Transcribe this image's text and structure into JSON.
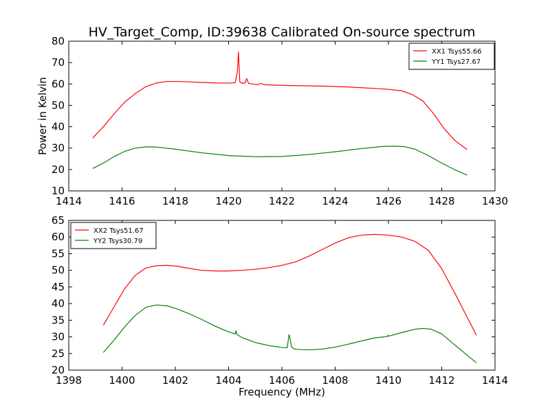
{
  "title": "HV_Target_Comp, ID:39638 Calibrated On-source spectrum",
  "chart_data": [
    {
      "type": "line",
      "ylabel": "Power in Kelvin",
      "xlabel": "",
      "xlim": [
        1414,
        1430
      ],
      "ylim": [
        10,
        80
      ],
      "xticks": [
        1414,
        1416,
        1418,
        1420,
        1422,
        1424,
        1426,
        1428,
        1430
      ],
      "yticks": [
        10,
        20,
        30,
        40,
        50,
        60,
        70,
        80
      ],
      "legend_position": "top-right",
      "grid": false,
      "series": [
        {
          "name": "XX1 Tsys55.66",
          "color": "#ff0000",
          "x": [
            1414.9,
            1415.3,
            1415.7,
            1416.1,
            1416.5,
            1416.9,
            1417.3,
            1417.7,
            1418.1,
            1418.5,
            1419.0,
            1419.5,
            1420.0,
            1420.25,
            1420.33,
            1420.37,
            1420.42,
            1420.5,
            1420.62,
            1420.68,
            1420.75,
            1420.9,
            1421.1,
            1421.2,
            1421.4,
            1421.8,
            1422.5,
            1423.5,
            1424.5,
            1425.5,
            1426.0,
            1426.5,
            1426.9,
            1427.3,
            1427.7,
            1428.1,
            1428.5,
            1428.95
          ],
          "y": [
            34.7,
            40,
            46,
            51.5,
            55.5,
            58.8,
            60.5,
            61.2,
            61.2,
            61.0,
            60.7,
            60.5,
            60.4,
            60.6,
            66,
            75,
            61,
            60.3,
            60.5,
            62.5,
            60.3,
            60.0,
            59.7,
            60.2,
            59.6,
            59.4,
            59.2,
            59.0,
            58.6,
            57.9,
            57.5,
            56.8,
            55,
            52,
            46,
            39,
            33.5,
            29.3
          ]
        },
        {
          "name": "YY1 Tsys27.67",
          "color": "#008000",
          "x": [
            1414.9,
            1415.3,
            1415.7,
            1416.1,
            1416.5,
            1416.9,
            1417.3,
            1418.0,
            1419.0,
            1420.0,
            1421.0,
            1422.0,
            1423.0,
            1424.0,
            1425.0,
            1425.8,
            1426.2,
            1426.6,
            1427.0,
            1427.5,
            1428.0,
            1428.5,
            1428.95
          ],
          "y": [
            20.5,
            23,
            26,
            28.5,
            30,
            30.6,
            30.5,
            29.5,
            27.8,
            26.5,
            26.0,
            26.1,
            27.0,
            28.3,
            29.8,
            30.8,
            30.9,
            30.7,
            29.5,
            26.5,
            23,
            19.8,
            17.4
          ]
        }
      ]
    },
    {
      "type": "line",
      "ylabel": "",
      "xlabel": "Frequency (MHz)",
      "xlim": [
        1398,
        1414
      ],
      "ylim": [
        20,
        65
      ],
      "xticks": [
        1398,
        1400,
        1402,
        1404,
        1406,
        1408,
        1410,
        1412,
        1414
      ],
      "yticks": [
        20,
        25,
        30,
        35,
        40,
        45,
        50,
        55,
        60,
        65
      ],
      "legend_position": "top-left",
      "grid": false,
      "series": [
        {
          "name": "XX2 Tsys51.67",
          "color": "#ff0000",
          "x": [
            1399.3,
            1399.7,
            1400.1,
            1400.5,
            1400.9,
            1401.3,
            1401.7,
            1402.1,
            1402.5,
            1403.0,
            1403.5,
            1404.0,
            1404.5,
            1405.0,
            1405.5,
            1406.0,
            1406.5,
            1407.0,
            1407.5,
            1408.0,
            1408.5,
            1409.0,
            1409.5,
            1410.0,
            1410.5,
            1411.0,
            1411.5,
            1412.0,
            1412.5,
            1413.3
          ],
          "y": [
            33.5,
            39,
            44.5,
            48.5,
            50.7,
            51.4,
            51.5,
            51.2,
            50.6,
            50.0,
            49.8,
            49.8,
            50.0,
            50.3,
            50.8,
            51.5,
            52.5,
            54.2,
            56.2,
            58.2,
            59.8,
            60.6,
            60.8,
            60.6,
            60.0,
            58.7,
            56.0,
            50.5,
            43.0,
            30.5
          ]
        },
        {
          "name": "YY2 Tsys30.79",
          "color": "#008000",
          "x": [
            1399.3,
            1399.7,
            1400.1,
            1400.5,
            1400.9,
            1401.3,
            1401.7,
            1402.1,
            1402.5,
            1403.0,
            1403.5,
            1404.0,
            1404.25,
            1404.28,
            1404.31,
            1404.5,
            1405.0,
            1405.5,
            1406.0,
            1406.2,
            1406.27,
            1406.3,
            1406.36,
            1406.45,
            1406.6,
            1407.0,
            1407.5,
            1408.0,
            1408.5,
            1409.0,
            1409.5,
            1409.95,
            1409.98,
            1410.01,
            1410.5,
            1411.0,
            1411.3,
            1411.6,
            1412.0,
            1412.5,
            1413.3
          ],
          "y": [
            25.3,
            29,
            33,
            36.5,
            38.9,
            39.6,
            39.3,
            38.3,
            37.0,
            35.2,
            33.2,
            31.5,
            30.9,
            31.8,
            30.7,
            29.8,
            28.3,
            27.4,
            26.8,
            26.7,
            30.7,
            29.8,
            27.0,
            26.4,
            26.2,
            26.1,
            26.3,
            26.9,
            27.8,
            28.8,
            29.7,
            30.1,
            30.5,
            30.2,
            31.3,
            32.3,
            32.5,
            32.3,
            30.9,
            27.5,
            22.2
          ]
        }
      ]
    }
  ]
}
